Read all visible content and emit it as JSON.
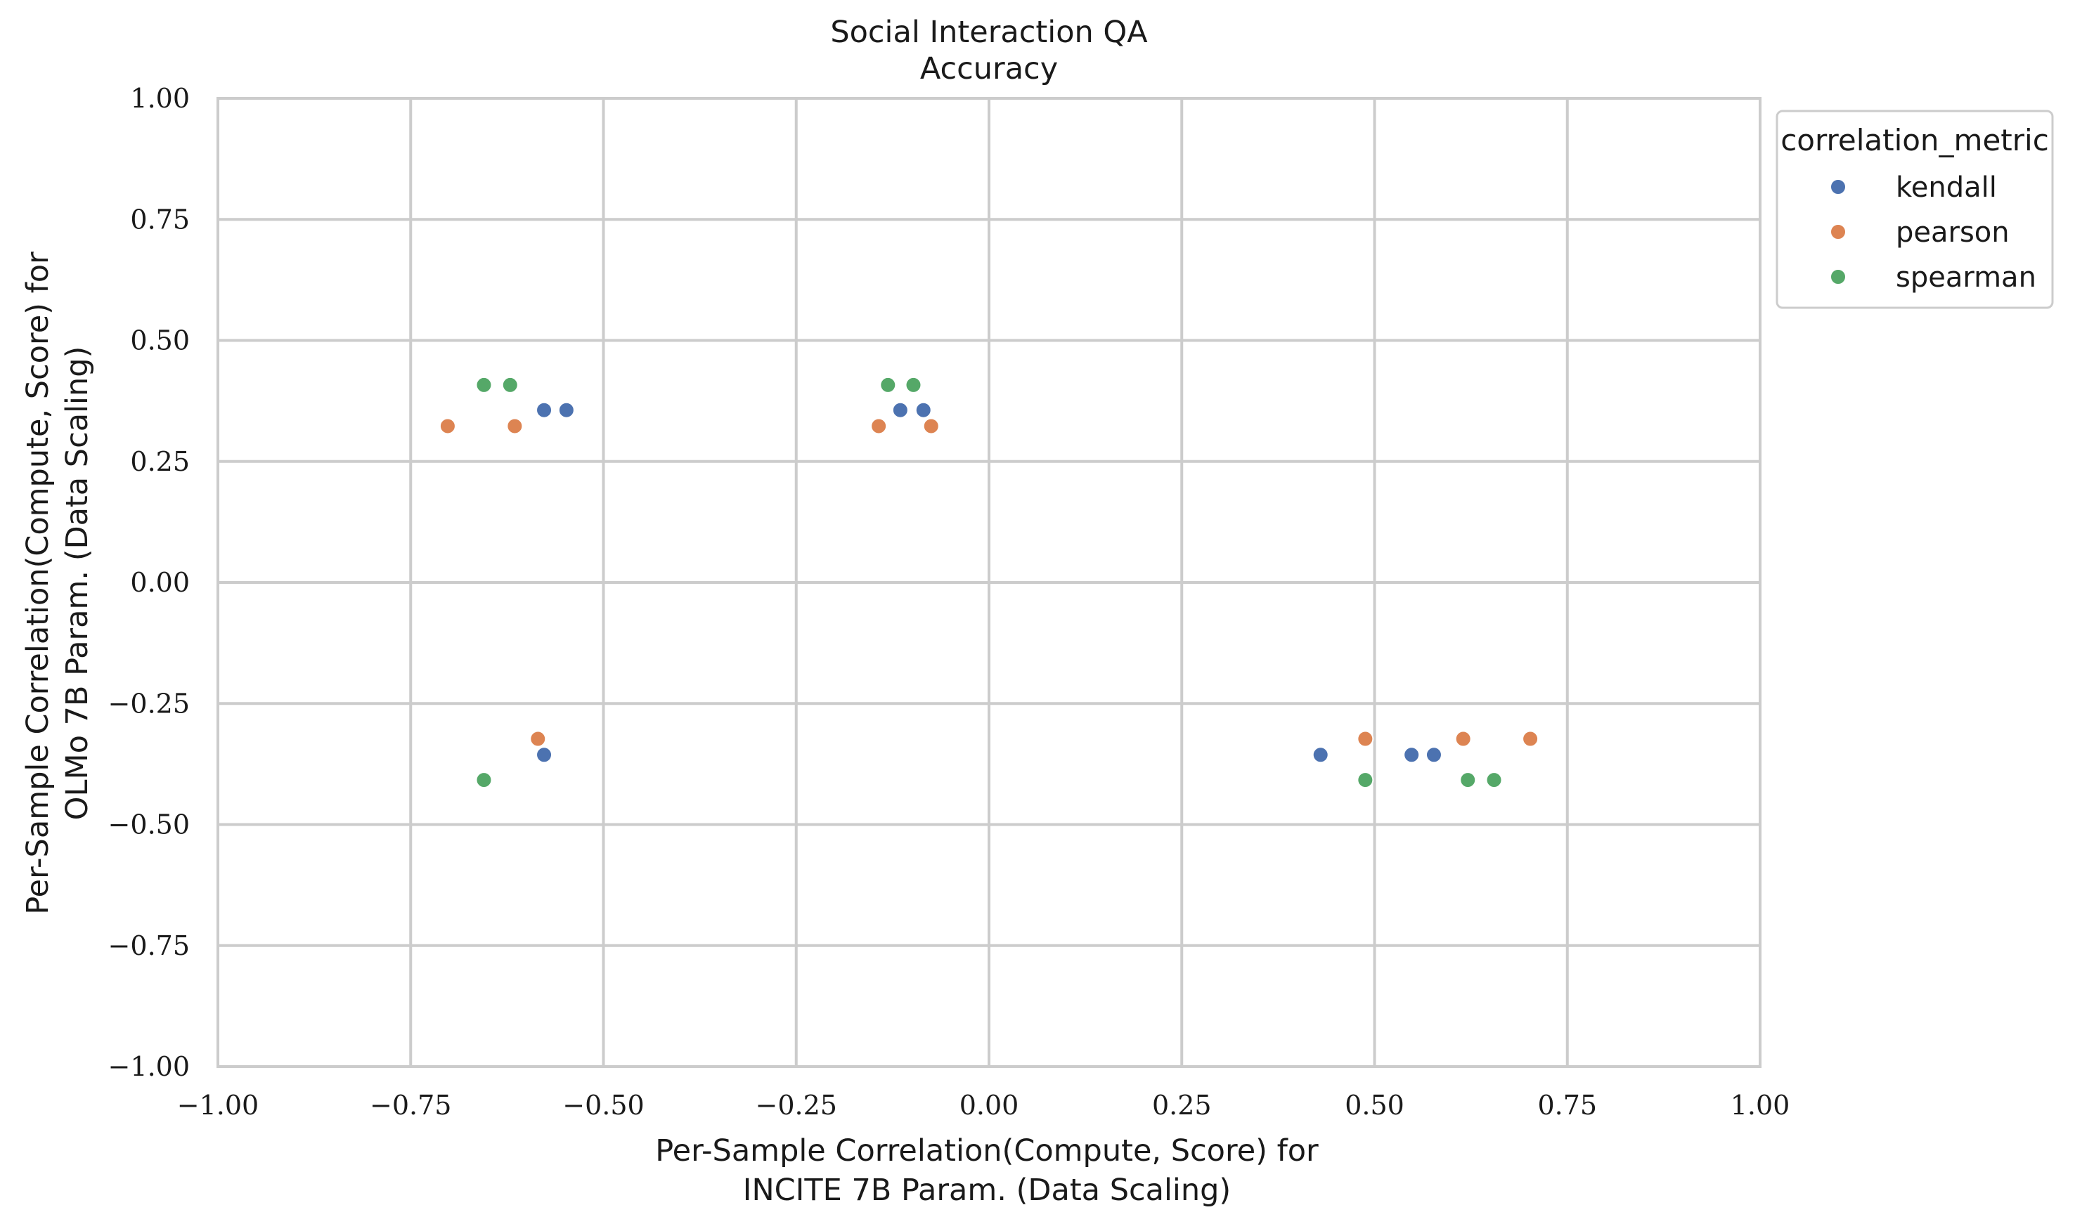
{
  "chart_data": {
    "type": "scatter",
    "title": "Social Interaction QA",
    "subtitle": "Accuracy",
    "xlabel_lines": [
      "Per-Sample Correlation(Compute, Score) for",
      "INCITE 7B Param. (Data Scaling)"
    ],
    "ylabel_lines": [
      "Per-Sample Correlation(Compute, Score) for",
      "OLMo 7B Param. (Data Scaling)"
    ],
    "xlim": [
      -1.0,
      1.0
    ],
    "ylim": [
      -1.0,
      1.0
    ],
    "xticks": [
      -1.0,
      -0.75,
      -0.5,
      -0.25,
      0.0,
      0.25,
      0.5,
      0.75,
      1.0
    ],
    "yticks": [
      -1.0,
      -0.75,
      -0.5,
      -0.25,
      0.0,
      0.25,
      0.5,
      0.75,
      1.0
    ],
    "xtick_labels": [
      "−1.00",
      "−0.75",
      "−0.50",
      "−0.25",
      "0.00",
      "0.25",
      "0.50",
      "0.75",
      "1.00"
    ],
    "ytick_labels": [
      "−1.00",
      "−0.75",
      "−0.50",
      "−0.25",
      "0.00",
      "0.25",
      "0.50",
      "0.75",
      "1.00"
    ],
    "grid": true,
    "legend": {
      "title": "correlation_metric",
      "position": "outside-top-right"
    },
    "series": [
      {
        "name": "kendall",
        "color": "#4c72b0",
        "points": [
          [
            -0.577,
            0.356
          ],
          [
            -0.548,
            0.356
          ],
          [
            -0.115,
            0.356
          ],
          [
            -0.085,
            0.356
          ],
          [
            -0.577,
            -0.356
          ],
          [
            0.43,
            -0.356
          ],
          [
            0.548,
            -0.356
          ],
          [
            0.577,
            -0.356
          ]
        ]
      },
      {
        "name": "pearson",
        "color": "#dd8452",
        "points": [
          [
            -0.702,
            0.323
          ],
          [
            -0.615,
            0.323
          ],
          [
            -0.143,
            0.323
          ],
          [
            -0.075,
            0.323
          ],
          [
            -0.585,
            -0.323
          ],
          [
            0.488,
            -0.323
          ],
          [
            0.615,
            -0.323
          ],
          [
            0.702,
            -0.323
          ]
        ]
      },
      {
        "name": "spearman",
        "color": "#55a868",
        "points": [
          [
            -0.655,
            0.408
          ],
          [
            -0.621,
            0.408
          ],
          [
            -0.131,
            0.408
          ],
          [
            -0.098,
            0.408
          ],
          [
            -0.655,
            -0.408
          ],
          [
            0.488,
            -0.408
          ],
          [
            0.621,
            -0.408
          ],
          [
            0.655,
            -0.408
          ]
        ]
      }
    ]
  }
}
